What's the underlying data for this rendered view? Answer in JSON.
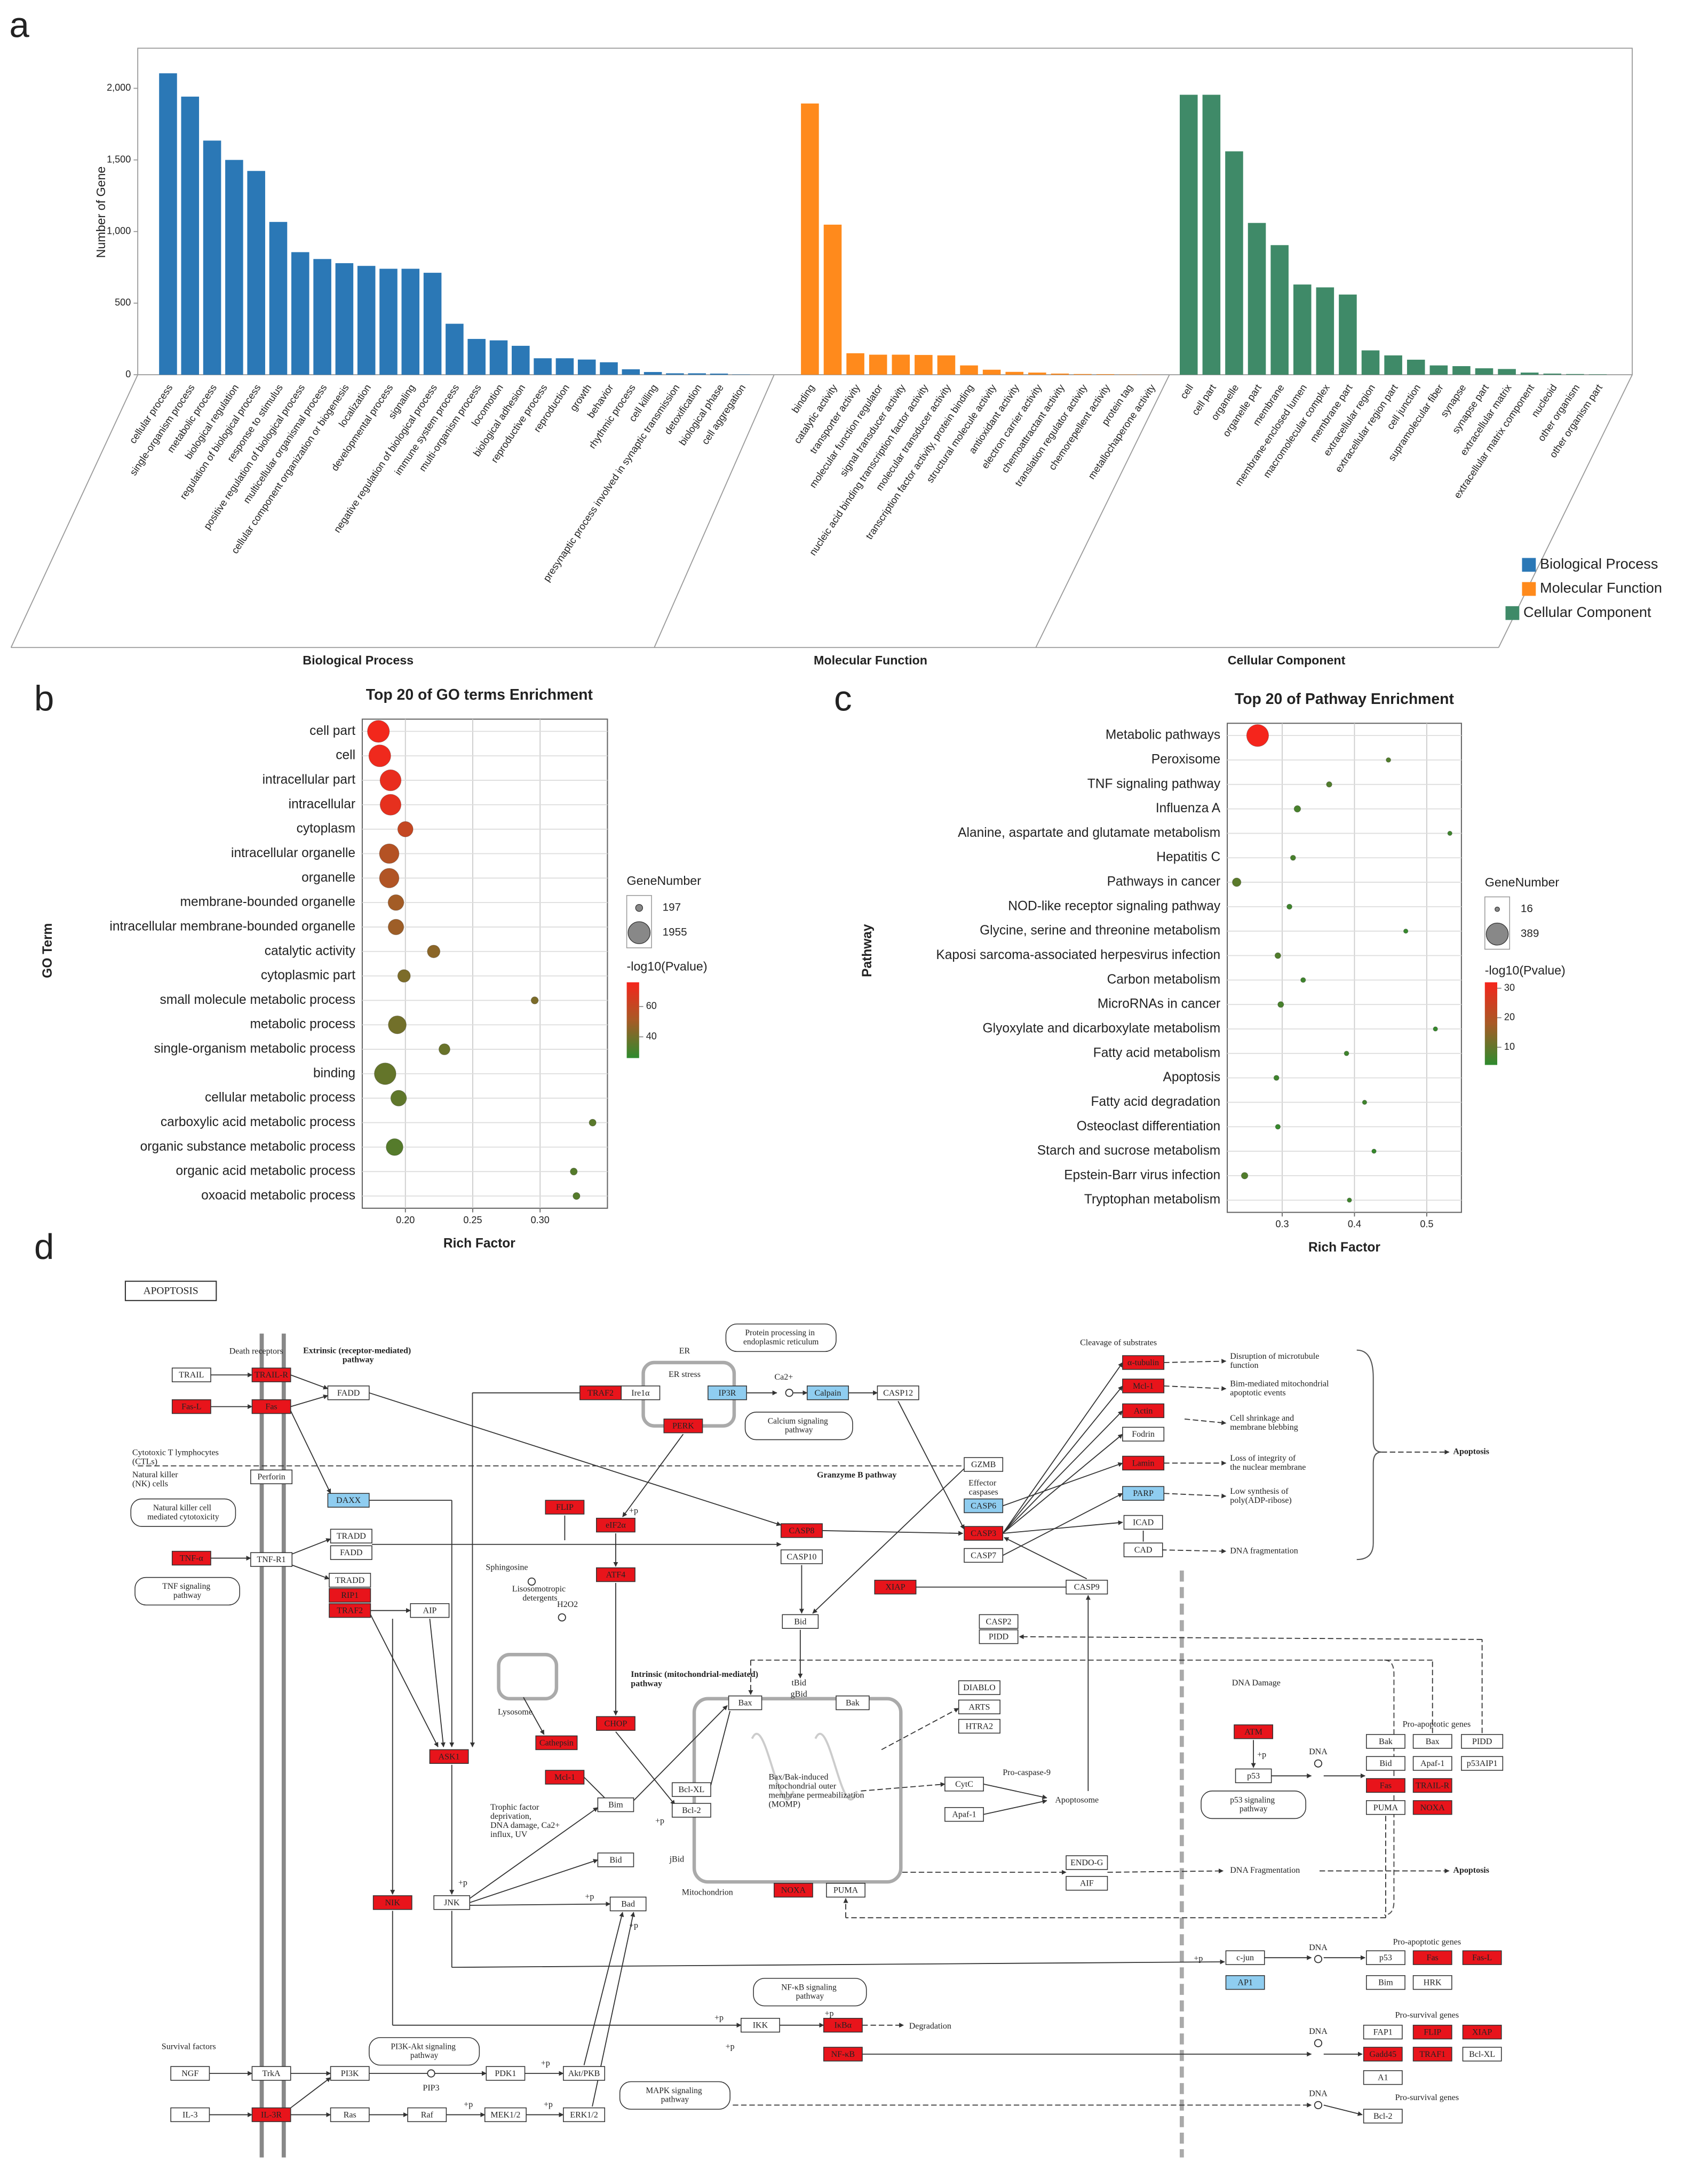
{
  "panel_labels": [
    "a",
    "b",
    "c",
    "d"
  ],
  "chart_data": [
    {
      "type": "bar",
      "ylabel": "Number of Gene",
      "ylim": [
        0,
        2280
      ],
      "yticks": [
        0,
        500,
        {
          "value": 1000,
          "label": "1,000"
        },
        {
          "value": 1500,
          "label": "1,500"
        },
        {
          "value": 2000,
          "label": "2,000"
        }
      ],
      "legend": "bottom-right",
      "groups": [
        {
          "name": "Biological Process",
          "color": "#2b78b6",
          "categories": [
            "cellular process",
            "single-organism process",
            "metabolic process",
            "biological regulation",
            "regulation of biological process",
            "response to stimulus",
            "positive regulation of biological process",
            "multicellular organismal process",
            "cellular component organization or biogenesis",
            "localization",
            "developmental process",
            "signaling",
            "negative regulation of biological process",
            "immune system process",
            "multi-organism process",
            "locomotion",
            "biological adhesion",
            "reproductive process",
            "reproduction",
            "growth",
            "behavior",
            "rhythmic process",
            "cell killing",
            "presynaptic process involved in synaptic transmission",
            "detoxification",
            "biological phase",
            "cell aggregation"
          ],
          "values": [
            2105,
            1942,
            1635,
            1500,
            1423,
            1067,
            856,
            808,
            779,
            760,
            740,
            740,
            712,
            356,
            250,
            240,
            202,
            115,
            115,
            106,
            87,
            38,
            19,
            10,
            10,
            8,
            2
          ]
        },
        {
          "name": "Molecular Function",
          "color": "#ff8a1c",
          "categories": [
            "binding",
            "catalytic activity",
            "transporter activity",
            "molecular function regulator",
            "signal transducer activity",
            "nucleic acid binding transcription factor activity",
            "molecular transducer activity",
            "transcription factor activity, protein binding",
            "structural molecule activity",
            "antioxidant activity",
            "electron carrier activity",
            "chemoattractant activity",
            "translation regulator activity",
            "chemorepellent activity",
            "protein tag",
            "metallochaperone activity"
          ],
          "values": [
            1894,
            1048,
            150,
            140,
            140,
            138,
            135,
            65,
            35,
            20,
            15,
            8,
            5,
            4,
            2,
            1
          ]
        },
        {
          "name": "Cellular Component",
          "color": "#3f8a68",
          "categories": [
            "cell",
            "cell part",
            "organelle",
            "organelle part",
            "membrane",
            "membrane-enclosed lumen",
            "macromolecular complex",
            "membrane part",
            "extracellular region",
            "extracellular region part",
            "cell junction",
            "supramolecular fiber",
            "synapse",
            "synapse part",
            "extracellular matrix",
            "extracellular matrix component",
            "nucleoid",
            "other organism",
            "other organism part"
          ],
          "values": [
            1955,
            1955,
            1560,
            1060,
            905,
            630,
            610,
            560,
            170,
            135,
            105,
            65,
            60,
            45,
            40,
            15,
            8,
            5,
            3
          ]
        }
      ]
    },
    {
      "type": "bubble",
      "title": "Top 20 of GO terms Enrichment",
      "xlabel": "Rich Factor",
      "ylabel": "GO Term",
      "categories": [
        "cell part",
        "cell",
        "intracellular part",
        "intracellular",
        "cytoplasm",
        "intracellular organelle",
        "organelle",
        "membrane-bounded organelle",
        "intracellular membrane-bounded organelle",
        "catalytic activity",
        "cytoplasmic part",
        "small molecule metabolic process",
        "metabolic process",
        "single-organism metabolic process",
        "binding",
        "cellular metabolic process",
        "carboxylic acid metabolic process",
        "organic substance metabolic process",
        "organic acid metabolic process",
        "oxoacid metabolic process"
      ],
      "x": [
        0.18,
        0.181,
        0.189,
        0.189,
        0.2,
        0.188,
        0.188,
        0.193,
        0.193,
        0.221,
        0.199,
        0.296,
        0.194,
        0.229,
        0.185,
        0.195,
        0.339,
        0.192,
        0.325,
        0.327
      ],
      "sizes": [
        1955,
        1940,
        1800,
        1770,
        950,
        1550,
        1540,
        1000,
        980,
        650,
        650,
        210,
        1300,
        500,
        1890,
        1000,
        197,
        1150,
        200,
        200
      ],
      "color_values": [
        75,
        74,
        72,
        71,
        60,
        55,
        54,
        50,
        49,
        45,
        42,
        42,
        40,
        38,
        37,
        36,
        35,
        34,
        34,
        34
      ],
      "xlim": [
        0.168,
        0.35
      ],
      "xticks": [
        {
          "value": 0.2,
          "label": "0.20"
        },
        {
          "value": 0.25,
          "label": "0.25"
        },
        {
          "value": 0.3,
          "label": "0.30"
        }
      ],
      "grid": true,
      "size_legend_title": "GeneNumber",
      "size_legend": [
        197,
        1955
      ],
      "color_legend_title": "-log10(Pvalue)",
      "clim": [
        26,
        76
      ],
      "cticks": [
        40,
        60
      ],
      "colors": [
        "#2e8b2e",
        "#f5251c"
      ]
    },
    {
      "type": "bubble",
      "title": "Top 20 of Pathway Enrichment",
      "xlabel": "Rich Factor",
      "ylabel": "Pathway",
      "categories": [
        "Metabolic pathways",
        "Peroxisome",
        "TNF signaling pathway",
        "Influenza A",
        "Alanine, aspartate and glutamate metabolism",
        "Hepatitis C",
        "Pathways in cancer",
        "NOD-like receptor signaling pathway",
        "Glycine, serine and threonine metabolism",
        "Kaposi sarcoma-associated herpesvirus infection",
        "Carbon metabolism",
        "MicroRNAs in cancer",
        "Glyoxylate and dicarboxylate metabolism",
        "Fatty acid metabolism",
        "Apoptosis",
        "Fatty acid degradation",
        "Osteoclast differentiation",
        "Starch and sucrose metabolism",
        "Epstein-Barr virus infection",
        "Tryptophan metabolism"
      ],
      "x": [
        0.266,
        0.447,
        0.365,
        0.321,
        0.532,
        0.315,
        0.237,
        0.31,
        0.471,
        0.294,
        0.329,
        0.298,
        0.512,
        0.389,
        0.292,
        0.414,
        0.294,
        0.427,
        0.248,
        0.393
      ],
      "sizes": [
        389,
        18,
        25,
        35,
        16,
        22,
        60,
        22,
        16,
        28,
        20,
        28,
        16,
        18,
        22,
        16,
        20,
        16,
        35,
        16
      ],
      "color_values": [
        32,
        8,
        8,
        7,
        6,
        7,
        9,
        6,
        5,
        8,
        6,
        7,
        5,
        6,
        6,
        6,
        5,
        5,
        8,
        6
      ],
      "xlim": [
        0.224,
        0.548
      ],
      "xticks": [
        0.3,
        0.4,
        0.5
      ],
      "grid": true,
      "size_legend_title": "GeneNumber",
      "size_legend": [
        16,
        389
      ],
      "color_legend_title": "-log10(Pvalue)",
      "clim": [
        4,
        32
      ],
      "cticks": [
        10,
        20,
        30
      ],
      "colors": [
        "#2e8b2e",
        "#f5251c"
      ]
    }
  ],
  "diagram": {
    "title": "APOPTOSIS",
    "nodes": [
      "TRAIL",
      "TRAIL-R",
      "Fas-L",
      "Fas",
      "FADD",
      "Perforin",
      "DAXX",
      "TRADD",
      "FADD",
      "TNF-α",
      "TNF-R1",
      "TRADD",
      "RIP1",
      "TRAF2",
      "AIP",
      "TRAF2",
      "Ire1α",
      "IP3R",
      "Calpain",
      "CASP12",
      "PERK",
      "FLIP",
      "eIF2α",
      "ATF4",
      "CASP8",
      "CASP10",
      "GZMB",
      "CASP6",
      "CASP3",
      "CASP7",
      "XIAP",
      "CASP9",
      "Bid",
      "CASP2",
      "PIDD",
      "α-tubulin",
      "Mcl-1",
      "Actin",
      "Fodrin",
      "Lamin",
      "PARP",
      "ICAD",
      "CAD",
      "DIABLO",
      "ARTS",
      "HTRA2",
      "Bax",
      "Bak",
      "CHOP",
      "Cathepsin",
      "ASK1",
      "Mcl-1",
      "Bim",
      "Bcl-XL",
      "Bcl-2",
      "CytC",
      "Apaf-1",
      "Bid",
      "Bad",
      "JNK",
      "NIK",
      "NOXA",
      "PUMA",
      "ENDO-G",
      "AIF",
      "ATM",
      "p53",
      "Bak",
      "Bax",
      "PIDD",
      "Bid",
      "Apaf-1",
      "p53AIP1",
      "Fas",
      "TRAIL-R",
      "PUMA",
      "NOXA",
      "c-jun",
      "AP1",
      "p53",
      "Fas",
      "Fas-L",
      "Bim",
      "HRK",
      "IKK",
      "IκBα",
      "NF-κB",
      "FAP1",
      "FLIP",
      "XIAP",
      "Gadd45",
      "TRAF1",
      "Bcl-XL",
      "A1",
      "Bcl-2",
      "NGF",
      "TrkA",
      "PI3K",
      "PDK1",
      "Akt/PKB",
      "IL-3",
      "IL-3R",
      "Ras",
      "Raf",
      "MEK1/2",
      "ERK1/2"
    ],
    "pathway_links": [
      "Natural killer cell mediated cytotoxicity",
      "TNF signaling pathway",
      "Protein processing in endoplasmic reticulum",
      "Calcium signaling pathway",
      "p53 signaling pathway",
      "NF-κB signaling pathway",
      "PI3K-Akt signaling pathway",
      "MAPK signaling pathway"
    ],
    "annotations": [
      "Death receptors",
      "Extrinsic (receptor-mediated) pathway",
      "ER",
      "ER stress",
      "Ca2+",
      "Cytotoxic T lymphocytes (CTLs)",
      "Natural killer (NK) cells",
      "Granzyme B pathway",
      "Effector caspases",
      "Cleavage of substrates",
      "Disruption of microtubule function",
      "Bim-mediated mitochondrial apoptotic events",
      "Cell shrinkage and membrane blebbing",
      "Loss of integrity of the nuclear membrane",
      "Low synthesis of poly(ADP-ribose)",
      "DNA fragmentation",
      "Apoptosis",
      "Sphingosine",
      "Lisosomotropic detergents",
      "H2O2",
      "Lysosome",
      "Intrinsic (mitochondrial-mediated) pathway",
      "tBid",
      "gBid",
      "Bax/Bak-induced mitochondrial outer membrane permeabilization (MOMP)",
      "Pro-caspase-9",
      "Apoptosome",
      "Trophic factor deprivation, DNA damage, Ca2+ influx, UV",
      "jBid",
      "Mitochondrion",
      "DNA Fragmentation",
      "Apoptosis",
      "DNA Damage",
      "DNA",
      "Pro-apoptotic genes",
      "Pro-apoptotic genes",
      "DNA",
      "Degradation",
      "Pro-survival genes",
      "DNA",
      "Survival factors",
      "PIP3",
      "DNA",
      "Pro-survival genes",
      "+p",
      "+p",
      "+p",
      "+p",
      "+p",
      "+p",
      "+p",
      "+p",
      "+p",
      "+p",
      "+p",
      "+p",
      "+p"
    ]
  }
}
